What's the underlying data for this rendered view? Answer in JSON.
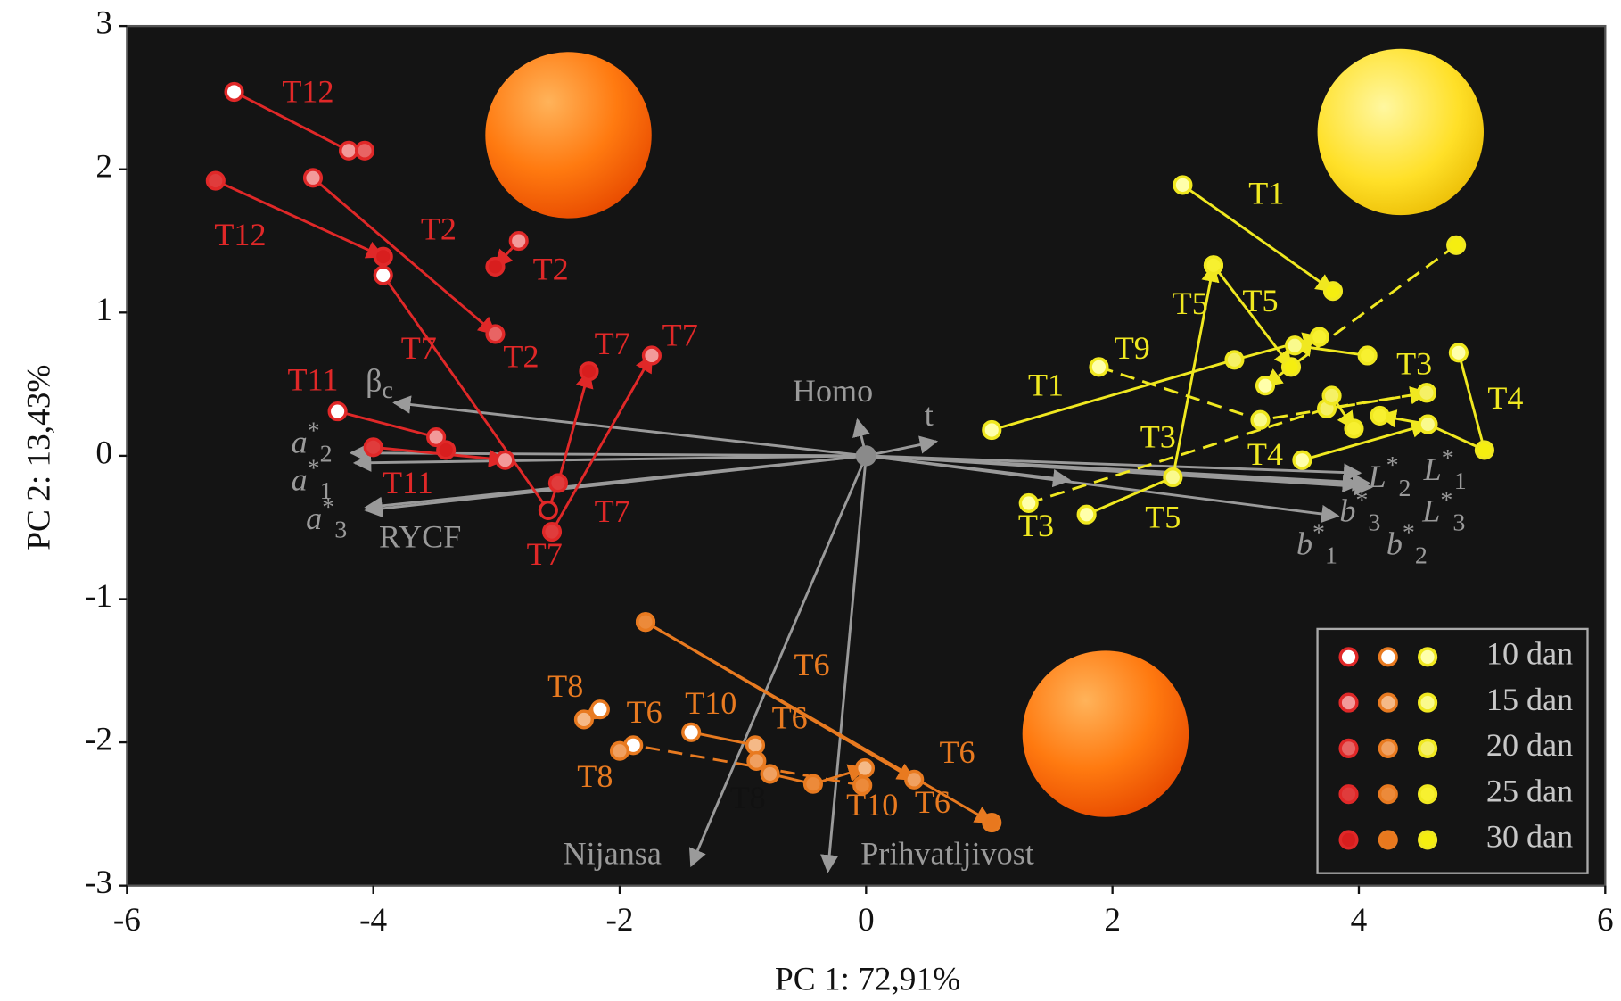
{
  "chart_data": {
    "type": "scatter",
    "xlabel": "PC 1: 72,91%",
    "ylabel": "PC 2: 13,43%",
    "xlim": [
      -6,
      6
    ],
    "ylim": [
      -3,
      3
    ],
    "xticks": [
      -6,
      -4,
      -2,
      0,
      2,
      4,
      6
    ],
    "yticks": [
      -3,
      -2,
      -1,
      0,
      1,
      2,
      3
    ],
    "background": "#141414",
    "groups": [
      {
        "color": "#e02828",
        "trajectories": [
          {
            "x": [
              -5.13,
              -4.2,
              -4.07
            ],
            "y": [
              2.54,
              2.13,
              2.13
            ],
            "fills": [
              "#ffffff",
              "#f29a9a",
              "#e86464"
            ]
          },
          {
            "x": [
              -5.28,
              -3.92
            ],
            "y": [
              1.92,
              1.39
            ],
            "fills": [
              "#e03c3c",
              "#d81e1e"
            ]
          },
          {
            "x": [
              -4.49,
              -3.01
            ],
            "y": [
              1.94,
              0.85
            ],
            "fills": [
              "#f29a9a",
              "#e86464"
            ]
          },
          {
            "x": [
              -2.82,
              -3.01
            ],
            "y": [
              1.5,
              1.32
            ],
            "fills": [
              "#f29a9a",
              "#d81e1e"
            ]
          },
          {
            "x": [
              -3.92,
              -2.58,
              -2.5,
              -2.25
            ],
            "y": [
              1.26,
              -0.38,
              -0.19,
              0.59
            ],
            "fills": [
              "#ffffff",
              "#141414",
              "#e03c3c",
              "#d81e1e"
            ]
          },
          {
            "x": [
              -2.55,
              -1.74
            ],
            "y": [
              -0.53,
              0.7
            ],
            "fills": [
              "#e03c3c",
              "#f29a9a"
            ]
          },
          {
            "x": [
              -4.29,
              -3.49,
              -3.41
            ],
            "y": [
              0.31,
              0.13,
              0.04
            ],
            "fills": [
              "#ffffff",
              "#f29a9a",
              "#d81e1e"
            ]
          },
          {
            "x": [
              -4.0,
              -2.93
            ],
            "y": [
              0.06,
              -0.03
            ],
            "fills": [
              "#e03c3c",
              "#f29a9a"
            ]
          }
        ],
        "annotations": [
          {
            "text": "T12",
            "x": -4.53,
            "y": 2.52
          },
          {
            "text": "T12",
            "x": -5.08,
            "y": 1.52
          },
          {
            "text": "T2",
            "x": -3.47,
            "y": 1.56
          },
          {
            "text": "T2",
            "x": -2.56,
            "y": 1.28
          },
          {
            "text": "T2",
            "x": -2.8,
            "y": 0.67
          },
          {
            "text": "T7",
            "x": -3.63,
            "y": 0.73
          },
          {
            "text": "T7",
            "x": -2.06,
            "y": 0.76
          },
          {
            "text": "T7",
            "x": -1.51,
            "y": 0.82
          },
          {
            "text": "T7",
            "x": -2.06,
            "y": -0.41
          },
          {
            "text": "T7",
            "x": -2.61,
            "y": -0.71
          },
          {
            "text": "T11",
            "x": -4.49,
            "y": 0.51
          },
          {
            "text": "T11",
            "x": -3.72,
            "y": -0.21
          }
        ]
      },
      {
        "color": "#e87a20",
        "trajectories": [
          {
            "x": [
              -1.79,
              0.39
            ],
            "y": [
              -1.16,
              -2.26
            ],
            "fills": [
              "#ec8a3a",
              "#f0a060"
            ]
          },
          {
            "x": [
              -1.79,
              1.02
            ],
            "y": [
              -1.16,
              -2.56
            ],
            "fills": [
              "#ec8a3a",
              "#e8781e"
            ]
          },
          {
            "x": [
              -2.16,
              -2.29
            ],
            "y": [
              -1.77,
              -1.84
            ],
            "fills": [
              "#ffffff",
              "#f5b987"
            ]
          },
          {
            "x": [
              -0.03,
              -1.89,
              -2.0
            ],
            "y": [
              -2.3,
              -2.02,
              -2.06
            ],
            "fills": [
              "#ec8a3a",
              "#ffffff",
              "#f0a060"
            ],
            "dashed": true
          },
          {
            "x": [
              -1.42,
              -0.9,
              -0.89,
              -0.78,
              -0.43,
              -0.01
            ],
            "y": [
              -1.93,
              -2.02,
              -2.13,
              -2.22,
              -2.29,
              -2.18
            ],
            "fills": [
              "#ffffff",
              "#f5b987",
              "#f0a060",
              "#f0a060",
              "#ec8a3a",
              "#f5b987"
            ]
          }
        ],
        "annotations": [
          {
            "text": "T6",
            "x": -0.44,
            "y": -1.48
          },
          {
            "text": "T8",
            "x": -2.44,
            "y": -1.63
          },
          {
            "text": "T6",
            "x": -1.8,
            "y": -1.81
          },
          {
            "text": "T10",
            "x": -1.26,
            "y": -1.75
          },
          {
            "text": "T6",
            "x": -0.62,
            "y": -1.85
          },
          {
            "text": "T8",
            "x": -2.2,
            "y": -2.26
          },
          {
            "text": "T8",
            "x": -0.96,
            "y": -2.41,
            "color": "#111111"
          },
          {
            "text": "T10",
            "x": 0.05,
            "y": -2.46
          },
          {
            "text": "T6",
            "x": 0.54,
            "y": -2.44
          },
          {
            "text": "T6",
            "x": 0.74,
            "y": -2.09
          }
        ]
      },
      {
        "color": "#f0e820",
        "trajectories": [
          {
            "x": [
              2.57,
              3.79
            ],
            "y": [
              1.89,
              1.15
            ],
            "fills": [
              "#ffffaa",
              "#f5ee10"
            ]
          },
          {
            "x": [
              2.82,
              3.45
            ],
            "y": [
              1.33,
              0.62
            ],
            "fills": [
              "#f7f030",
              "#f5ee10"
            ]
          },
          {
            "x": [
              1.79,
              2.49,
              2.82
            ],
            "y": [
              -0.41,
              -0.15,
              1.33
            ],
            "fills": [
              "#ffffaa",
              "#fafa8c",
              "#f7f030"
            ]
          },
          {
            "x": [
              1.02,
              2.99,
              3.68
            ],
            "y": [
              0.18,
              0.67,
              0.83
            ],
            "fills": [
              "#ffffaa",
              "#f5f066",
              "#f7f030"
            ]
          },
          {
            "x": [
              4.79,
              3.24
            ],
            "y": [
              1.47,
              0.49
            ],
            "fills": [
              "#f5ee10",
              "#ffffaa"
            ],
            "dashed": true
          },
          {
            "x": [
              1.89,
              3.2,
              4.55
            ],
            "y": [
              0.62,
              0.25,
              0.44
            ],
            "fills": [
              "#ffffaa",
              "#fafa8c",
              "#f5f066"
            ],
            "dashed": true
          },
          {
            "x": [
              1.32,
              3.74,
              4.55
            ],
            "y": [
              -0.33,
              0.33,
              0.44
            ],
            "fills": [
              "#ffffaa",
              "#f5f066",
              "#f5f066"
            ],
            "dashed": true
          },
          {
            "x": [
              4.07,
              3.48
            ],
            "y": [
              0.7,
              0.77
            ],
            "fills": [
              "#f7f030",
              "#fafa8c"
            ]
          },
          {
            "x": [
              4.81,
              5.02,
              4.56,
              4.17
            ],
            "y": [
              0.72,
              0.04,
              0.22,
              0.28
            ],
            "fills": [
              "#ffffaa",
              "#f5ee10",
              "#fafa8c",
              "#f7f030"
            ]
          },
          {
            "x": [
              3.54,
              4.56
            ],
            "y": [
              -0.03,
              0.22
            ],
            "fills": [
              "#ffffaa",
              "#fafa8c"
            ]
          },
          {
            "x": [
              3.78,
              3.96
            ],
            "y": [
              0.42,
              0.19
            ],
            "fills": [
              "#f5f066",
              "#f7f030"
            ]
          }
        ],
        "annotations": [
          {
            "text": "T1",
            "x": 3.25,
            "y": 1.81
          },
          {
            "text": "T5",
            "x": 2.63,
            "y": 1.04
          },
          {
            "text": "T5",
            "x": 3.2,
            "y": 1.06
          },
          {
            "text": "T9",
            "x": 2.16,
            "y": 0.73
          },
          {
            "text": "T1",
            "x": 1.46,
            "y": 0.47
          },
          {
            "text": "T3",
            "x": 4.45,
            "y": 0.62
          },
          {
            "text": "T4",
            "x": 5.19,
            "y": 0.38
          },
          {
            "text": "T3",
            "x": 2.37,
            "y": 0.11
          },
          {
            "text": "T4",
            "x": 3.24,
            "y": -0.01
          },
          {
            "text": "T3",
            "x": 1.38,
            "y": -0.51
          },
          {
            "text": "T5",
            "x": 2.41,
            "y": -0.45
          }
        ]
      }
    ],
    "vectors": [
      {
        "label": "β",
        "sub": "c",
        "x": -3.83,
        "y": 0.37,
        "label_x": -3.95,
        "label_y": 0.5
      },
      {
        "label": "a",
        "sup": "*",
        "sub": "2",
        "x": -4.18,
        "y": 0.02,
        "label_x": -4.5,
        "label_y": 0.07
      },
      {
        "label": "a",
        "sup": "*",
        "sub": "1",
        "x": -4.15,
        "y": -0.05,
        "label_x": -4.5,
        "label_y": -0.19
      },
      {
        "label": "a",
        "sup": "*",
        "sub": "3",
        "x": -4.06,
        "y": -0.36,
        "label_x": -4.38,
        "label_y": -0.46
      },
      {
        "label": "RYCF",
        "x": -4.06,
        "y": -0.38,
        "label_x": -3.62,
        "label_y": -0.59
      },
      {
        "label": "Homo",
        "x": -0.07,
        "y": 0.25,
        "label_x": -0.27,
        "label_y": 0.43
      },
      {
        "label": "t",
        "x": 0.57,
        "y": 0.1,
        "label_x": 0.51,
        "label_y": 0.26
      },
      {
        "label": "L",
        "sup": "*",
        "sub": "2",
        "x": 4.08,
        "y": -0.19,
        "label_x": 4.25,
        "label_y": -0.17
      },
      {
        "label": "L",
        "sup": "*",
        "sub": "1",
        "x": 4.01,
        "y": -0.12,
        "label_x": 4.7,
        "label_y": -0.12
      },
      {
        "label": "L",
        "sup": "*",
        "sub": "3",
        "x": 4.1,
        "y": -0.22,
        "label_x": 4.69,
        "label_y": -0.41
      },
      {
        "label": "b",
        "sup": "*",
        "sub": "3",
        "x": 3.83,
        "y": -0.42,
        "label_x": 4.01,
        "label_y": -0.41
      },
      {
        "label": "b",
        "sup": "*",
        "sub": "1",
        "x": 1.65,
        "y": -0.17,
        "label_x": 3.66,
        "label_y": -0.64
      },
      {
        "label": "b",
        "sup": "*",
        "sub": "2",
        "x": 4.0,
        "y": -0.2,
        "label_x": 4.39,
        "label_y": -0.64
      },
      {
        "label": "Nijansa",
        "x": -1.42,
        "y": -2.86,
        "label_x": -2.06,
        "label_y": -2.8
      },
      {
        "label": "Prihvatljivost",
        "x": -0.31,
        "y": -2.9,
        "label_x": 0.66,
        "label_y": -2.8
      }
    ],
    "legend": {
      "position": "lower right",
      "edges": [
        "#e02828",
        "#e87a20",
        "#f0e820"
      ],
      "entries": [
        {
          "name": "10 dan",
          "colors": [
            "#ffffff",
            "#ffffff",
            "#ffffaa"
          ]
        },
        {
          "name": "15 dan",
          "colors": [
            "#f29a9a",
            "#f5b987",
            "#fafa8c"
          ]
        },
        {
          "name": "20 dan",
          "colors": [
            "#e86464",
            "#f0a060",
            "#f5f066"
          ]
        },
        {
          "name": "25 dan",
          "colors": [
            "#e03c3c",
            "#ec8a3a",
            "#f7f030"
          ]
        },
        {
          "name": "30 dan",
          "colors": [
            "#d81e1e",
            "#e8781e",
            "#f5ee10"
          ]
        }
      ]
    }
  }
}
